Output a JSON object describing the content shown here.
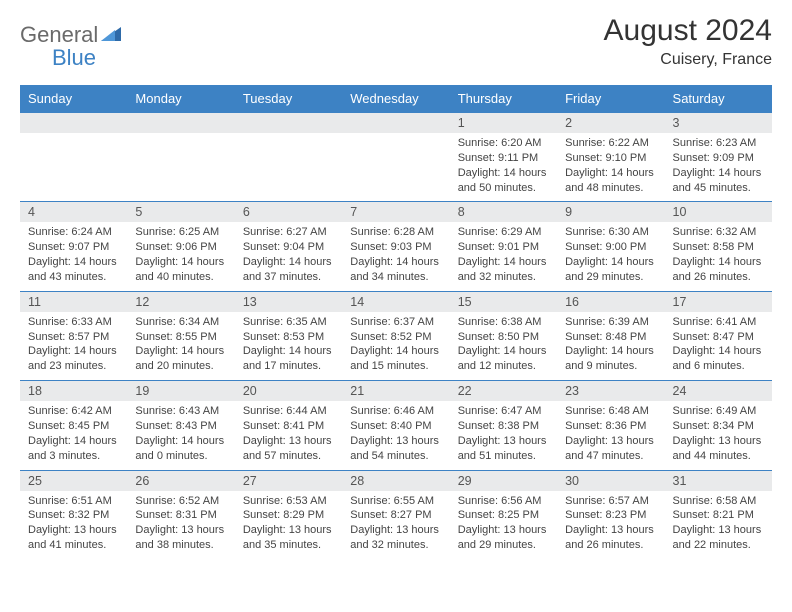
{
  "brand": {
    "part1": "General",
    "part2": "Blue"
  },
  "title": {
    "month": "August 2024",
    "location": "Cuisery, France"
  },
  "colors": {
    "header_bg": "#3d82c4",
    "header_fg": "#ffffff",
    "daynum_bg": "#e9eaeb",
    "rule": "#3d82c4",
    "body_text": "#444444"
  },
  "weekdays": [
    "Sunday",
    "Monday",
    "Tuesday",
    "Wednesday",
    "Thursday",
    "Friday",
    "Saturday"
  ],
  "weeks": [
    [
      null,
      null,
      null,
      null,
      {
        "n": "1",
        "sr": "Sunrise: 6:20 AM",
        "ss": "Sunset: 9:11 PM",
        "d1": "Daylight: 14 hours",
        "d2": "and 50 minutes."
      },
      {
        "n": "2",
        "sr": "Sunrise: 6:22 AM",
        "ss": "Sunset: 9:10 PM",
        "d1": "Daylight: 14 hours",
        "d2": "and 48 minutes."
      },
      {
        "n": "3",
        "sr": "Sunrise: 6:23 AM",
        "ss": "Sunset: 9:09 PM",
        "d1": "Daylight: 14 hours",
        "d2": "and 45 minutes."
      }
    ],
    [
      {
        "n": "4",
        "sr": "Sunrise: 6:24 AM",
        "ss": "Sunset: 9:07 PM",
        "d1": "Daylight: 14 hours",
        "d2": "and 43 minutes."
      },
      {
        "n": "5",
        "sr": "Sunrise: 6:25 AM",
        "ss": "Sunset: 9:06 PM",
        "d1": "Daylight: 14 hours",
        "d2": "and 40 minutes."
      },
      {
        "n": "6",
        "sr": "Sunrise: 6:27 AM",
        "ss": "Sunset: 9:04 PM",
        "d1": "Daylight: 14 hours",
        "d2": "and 37 minutes."
      },
      {
        "n": "7",
        "sr": "Sunrise: 6:28 AM",
        "ss": "Sunset: 9:03 PM",
        "d1": "Daylight: 14 hours",
        "d2": "and 34 minutes."
      },
      {
        "n": "8",
        "sr": "Sunrise: 6:29 AM",
        "ss": "Sunset: 9:01 PM",
        "d1": "Daylight: 14 hours",
        "d2": "and 32 minutes."
      },
      {
        "n": "9",
        "sr": "Sunrise: 6:30 AM",
        "ss": "Sunset: 9:00 PM",
        "d1": "Daylight: 14 hours",
        "d2": "and 29 minutes."
      },
      {
        "n": "10",
        "sr": "Sunrise: 6:32 AM",
        "ss": "Sunset: 8:58 PM",
        "d1": "Daylight: 14 hours",
        "d2": "and 26 minutes."
      }
    ],
    [
      {
        "n": "11",
        "sr": "Sunrise: 6:33 AM",
        "ss": "Sunset: 8:57 PM",
        "d1": "Daylight: 14 hours",
        "d2": "and 23 minutes."
      },
      {
        "n": "12",
        "sr": "Sunrise: 6:34 AM",
        "ss": "Sunset: 8:55 PM",
        "d1": "Daylight: 14 hours",
        "d2": "and 20 minutes."
      },
      {
        "n": "13",
        "sr": "Sunrise: 6:35 AM",
        "ss": "Sunset: 8:53 PM",
        "d1": "Daylight: 14 hours",
        "d2": "and 17 minutes."
      },
      {
        "n": "14",
        "sr": "Sunrise: 6:37 AM",
        "ss": "Sunset: 8:52 PM",
        "d1": "Daylight: 14 hours",
        "d2": "and 15 minutes."
      },
      {
        "n": "15",
        "sr": "Sunrise: 6:38 AM",
        "ss": "Sunset: 8:50 PM",
        "d1": "Daylight: 14 hours",
        "d2": "and 12 minutes."
      },
      {
        "n": "16",
        "sr": "Sunrise: 6:39 AM",
        "ss": "Sunset: 8:48 PM",
        "d1": "Daylight: 14 hours",
        "d2": "and 9 minutes."
      },
      {
        "n": "17",
        "sr": "Sunrise: 6:41 AM",
        "ss": "Sunset: 8:47 PM",
        "d1": "Daylight: 14 hours",
        "d2": "and 6 minutes."
      }
    ],
    [
      {
        "n": "18",
        "sr": "Sunrise: 6:42 AM",
        "ss": "Sunset: 8:45 PM",
        "d1": "Daylight: 14 hours",
        "d2": "and 3 minutes."
      },
      {
        "n": "19",
        "sr": "Sunrise: 6:43 AM",
        "ss": "Sunset: 8:43 PM",
        "d1": "Daylight: 14 hours",
        "d2": "and 0 minutes."
      },
      {
        "n": "20",
        "sr": "Sunrise: 6:44 AM",
        "ss": "Sunset: 8:41 PM",
        "d1": "Daylight: 13 hours",
        "d2": "and 57 minutes."
      },
      {
        "n": "21",
        "sr": "Sunrise: 6:46 AM",
        "ss": "Sunset: 8:40 PM",
        "d1": "Daylight: 13 hours",
        "d2": "and 54 minutes."
      },
      {
        "n": "22",
        "sr": "Sunrise: 6:47 AM",
        "ss": "Sunset: 8:38 PM",
        "d1": "Daylight: 13 hours",
        "d2": "and 51 minutes."
      },
      {
        "n": "23",
        "sr": "Sunrise: 6:48 AM",
        "ss": "Sunset: 8:36 PM",
        "d1": "Daylight: 13 hours",
        "d2": "and 47 minutes."
      },
      {
        "n": "24",
        "sr": "Sunrise: 6:49 AM",
        "ss": "Sunset: 8:34 PM",
        "d1": "Daylight: 13 hours",
        "d2": "and 44 minutes."
      }
    ],
    [
      {
        "n": "25",
        "sr": "Sunrise: 6:51 AM",
        "ss": "Sunset: 8:32 PM",
        "d1": "Daylight: 13 hours",
        "d2": "and 41 minutes."
      },
      {
        "n": "26",
        "sr": "Sunrise: 6:52 AM",
        "ss": "Sunset: 8:31 PM",
        "d1": "Daylight: 13 hours",
        "d2": "and 38 minutes."
      },
      {
        "n": "27",
        "sr": "Sunrise: 6:53 AM",
        "ss": "Sunset: 8:29 PM",
        "d1": "Daylight: 13 hours",
        "d2": "and 35 minutes."
      },
      {
        "n": "28",
        "sr": "Sunrise: 6:55 AM",
        "ss": "Sunset: 8:27 PM",
        "d1": "Daylight: 13 hours",
        "d2": "and 32 minutes."
      },
      {
        "n": "29",
        "sr": "Sunrise: 6:56 AM",
        "ss": "Sunset: 8:25 PM",
        "d1": "Daylight: 13 hours",
        "d2": "and 29 minutes."
      },
      {
        "n": "30",
        "sr": "Sunrise: 6:57 AM",
        "ss": "Sunset: 8:23 PM",
        "d1": "Daylight: 13 hours",
        "d2": "and 26 minutes."
      },
      {
        "n": "31",
        "sr": "Sunrise: 6:58 AM",
        "ss": "Sunset: 8:21 PM",
        "d1": "Daylight: 13 hours",
        "d2": "and 22 minutes."
      }
    ]
  ]
}
